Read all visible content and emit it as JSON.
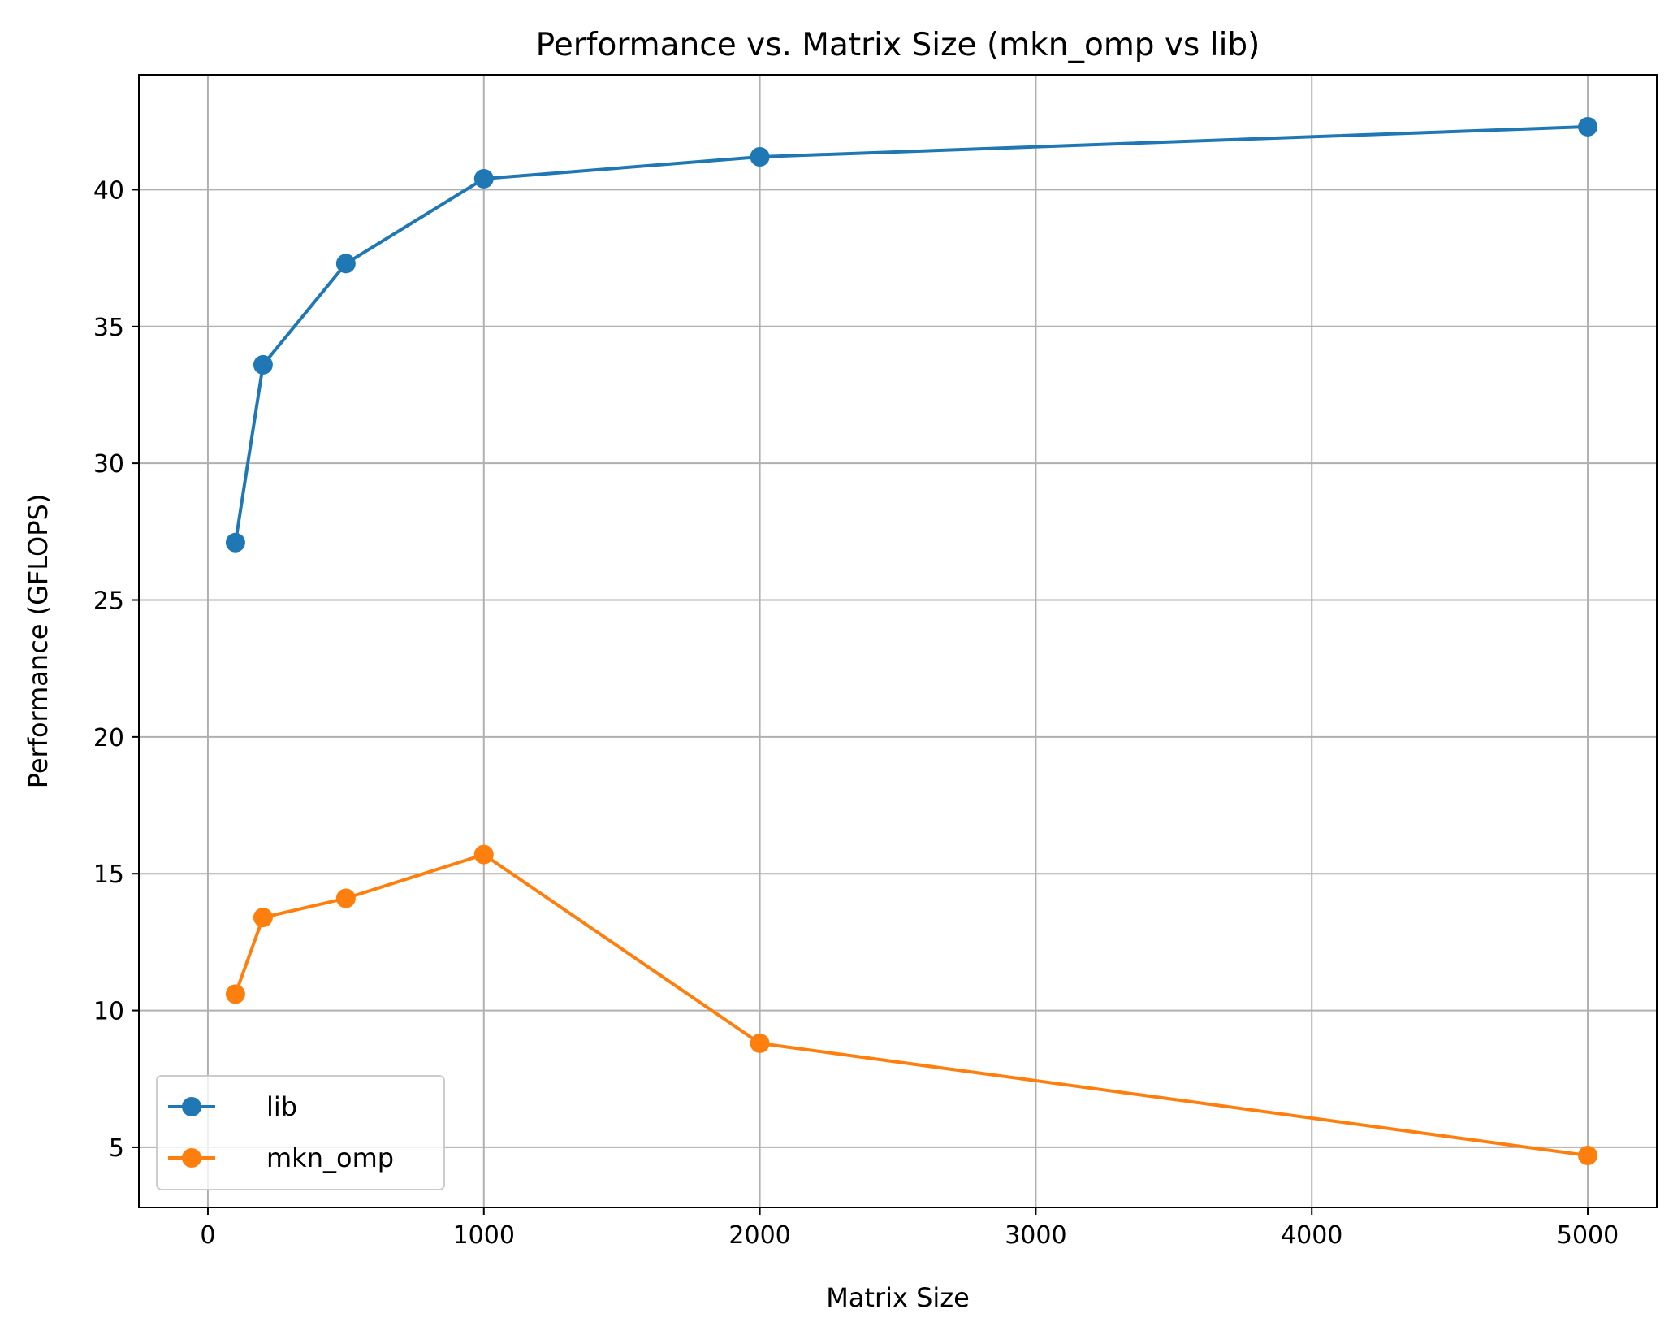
{
  "chart_data": {
    "type": "line",
    "title": "Performance vs. Matrix Size (mkn_omp vs lib)",
    "xlabel": "Matrix Size",
    "ylabel": "Performance (GFLOPS)",
    "xlim": [
      -250,
      5250
    ],
    "ylim": [
      2.8,
      44.2
    ],
    "xticks": [
      0,
      1000,
      2000,
      3000,
      4000,
      5000
    ],
    "xtick_labels": [
      "0",
      "1000",
      "2000",
      "3000",
      "4000",
      "5000"
    ],
    "yticks": [
      5,
      10,
      15,
      20,
      25,
      30,
      35,
      40
    ],
    "ytick_labels": [
      "5",
      "10",
      "15",
      "20",
      "25",
      "30",
      "35",
      "40"
    ],
    "grid": true,
    "legend_position": "lower-left",
    "x": [
      100,
      200,
      500,
      1000,
      2000,
      5000
    ],
    "series": [
      {
        "name": "lib",
        "color": "#1f77b4",
        "marker": "circle",
        "values": [
          27.1,
          33.6,
          37.3,
          40.4,
          41.2,
          42.3
        ]
      },
      {
        "name": "mkn_omp",
        "color": "#ff7f0e",
        "marker": "circle",
        "values": [
          10.6,
          13.4,
          14.1,
          15.7,
          8.8,
          4.7
        ]
      }
    ]
  }
}
